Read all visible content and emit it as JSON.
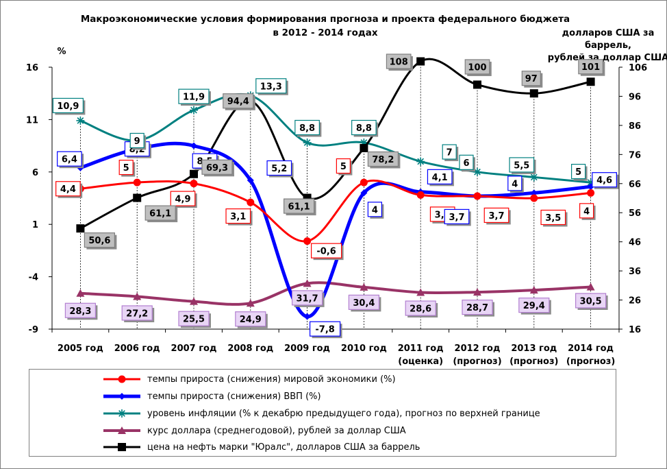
{
  "chart_data": {
    "type": "line",
    "title": "Макроэкономические условия формирования прогноза и проекта федерального бюджета",
    "subtitle": "в 2012 - 2014 годах",
    "left_axis_label": "%",
    "right_axis_label": [
      "долларов США за",
      "баррель,",
      "рублей за доллар США"
    ],
    "left_axis": {
      "min": -9,
      "max": 16,
      "ticks": [
        "16",
        "11",
        "6",
        "1",
        "-4",
        "-9"
      ]
    },
    "right_axis": {
      "min": 16,
      "max": 106,
      "ticks": [
        "106",
        "96",
        "86",
        "76",
        "66",
        "56",
        "46",
        "36",
        "26",
        "16"
      ]
    },
    "categories": [
      [
        "2005 год"
      ],
      [
        "2006 год"
      ],
      [
        "2007 год"
      ],
      [
        "2008 год"
      ],
      [
        "2009 год"
      ],
      [
        "2010 год"
      ],
      [
        "2011 год",
        "(оценка)"
      ],
      [
        "2012 год",
        "(прогноз)"
      ],
      [
        "2013 год",
        "(прогноз)"
      ],
      [
        "2014 год",
        "(прогноз)"
      ]
    ],
    "series": [
      {
        "key": "world",
        "name": "темпы прироста  (снижения) мировой экономики (%)",
        "axis": "left",
        "color": "#ff0000",
        "marker": "circle",
        "values": [
          4.4,
          5,
          4.9,
          3.1,
          -0.6,
          5,
          3.8,
          3.7,
          3.5,
          4
        ],
        "labels": [
          "4,4",
          "5",
          "4,9",
          "3,1",
          "-0,6",
          "5",
          "3,8",
          "3,7",
          "3,5",
          "4"
        ]
      },
      {
        "key": "gdp",
        "name": "темпы прироста (снижения) ВВП (%)",
        "axis": "left",
        "color": "#0000ff",
        "marker": "diamond",
        "values": [
          6.4,
          8.2,
          8.5,
          5.2,
          -7.8,
          4,
          4.1,
          3.7,
          4,
          4.6
        ],
        "labels": [
          "6,4",
          "8,2",
          "8,5",
          "5,2",
          "-7,8",
          "4",
          "4,1",
          "3,7",
          "4",
          "4,6"
        ]
      },
      {
        "key": "inflation",
        "name": "уровень инфляции (% к декабрю предыдущего года), прогноз по верхней границе",
        "axis": "left",
        "color": "#008080",
        "marker": "star",
        "values": [
          10.9,
          9,
          11.9,
          13.3,
          8.8,
          8.8,
          7,
          6,
          5.5,
          5
        ],
        "labels": [
          "10,9",
          "9",
          "11,9",
          "13,3",
          "8,8",
          "8,8",
          "7",
          "6",
          "5,5",
          "5"
        ]
      },
      {
        "key": "usd",
        "name": "курс доллара (среднегодовой), рублей за доллар США",
        "axis": "right",
        "color": "#993366",
        "marker": "triangle",
        "values": [
          28.3,
          27.2,
          25.5,
          24.9,
          31.7,
          30.4,
          28.6,
          28.7,
          29.4,
          30.5
        ],
        "labels": [
          "28,3",
          "27,2",
          "25,5",
          "24,9",
          "31,7",
          "30,4",
          "28,6",
          "28,7",
          "29,4",
          "30,5"
        ]
      },
      {
        "key": "oil",
        "name": "цена на нефть марки \"Юралс\", долларов США за баррель",
        "axis": "right",
        "color": "#000000",
        "marker": "square",
        "values": [
          50.6,
          61.1,
          69.3,
          94.4,
          61.1,
          78.2,
          108,
          100,
          97,
          101
        ],
        "labels": [
          "50,6",
          "61,1",
          "69,3",
          "94,4",
          "61,1",
          "78,2",
          "108",
          "100",
          "97",
          "101"
        ]
      }
    ],
    "legend_position": "bottom",
    "grid": false
  }
}
